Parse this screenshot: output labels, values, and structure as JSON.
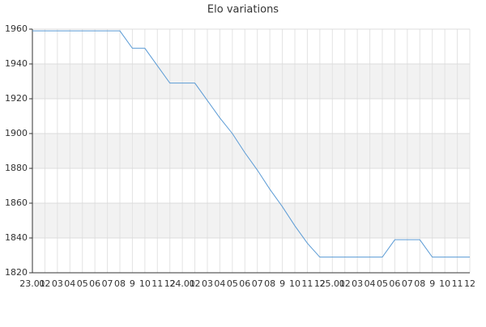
{
  "chart_data": {
    "type": "line",
    "title": "Elo variations",
    "categories": [
      "23.01",
      "02",
      "03",
      "04",
      "05",
      "06",
      "07",
      "08",
      "9",
      "10",
      "11",
      "12",
      "24.01",
      "02",
      "03",
      "04",
      "05",
      "06",
      "07",
      "08",
      "9",
      "10",
      "11",
      "12",
      "25.01",
      "02",
      "03",
      "04",
      "05",
      "06",
      "07",
      "08",
      "9",
      "10",
      "11",
      "12"
    ],
    "values": [
      1959,
      1959,
      1959,
      1959,
      1959,
      1959,
      1959,
      1959,
      1949,
      1949,
      1939,
      1929,
      1929,
      1929,
      1919,
      1909,
      1900,
      1889,
      1879,
      1868,
      1858,
      1847,
      1837,
      1829,
      1829,
      1829,
      1829,
      1829,
      1829,
      1839,
      1839,
      1839,
      1829,
      1829,
      1829,
      1829
    ],
    "color": "#5b9bd5",
    "ylim": [
      1820,
      1960
    ],
    "yticks": [
      1820,
      1840,
      1860,
      1880,
      1900,
      1920,
      1940,
      1960
    ],
    "grid": true,
    "band_color": "#f2f2f2"
  }
}
